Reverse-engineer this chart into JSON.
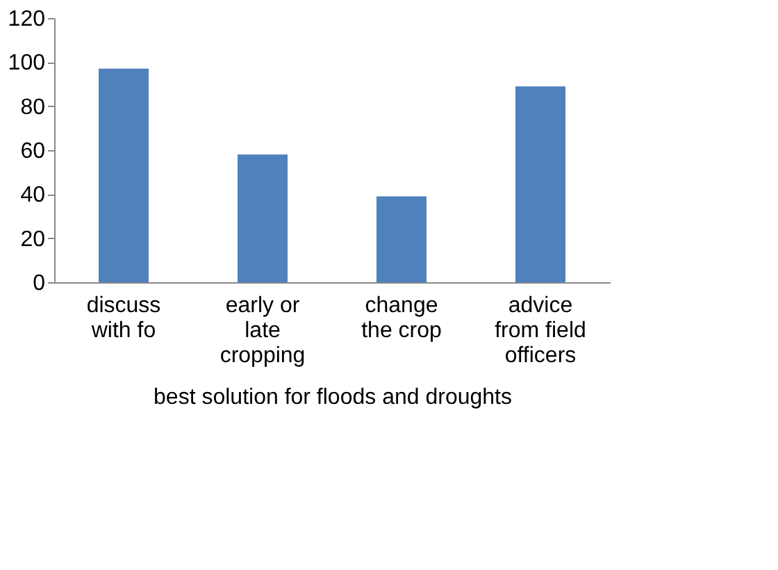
{
  "chart_data": {
    "type": "bar",
    "categories": [
      "discuss\nwith fo",
      "early or\nlate\ncropping",
      "change\nthe crop",
      "advice\nfrom field\nofficers"
    ],
    "values": [
      97,
      58,
      39,
      89
    ],
    "color": "#4f81bd",
    "xlabel": "best solution for floods and droughts",
    "ylim": [
      0,
      120
    ],
    "yticks": [
      0,
      20,
      40,
      60,
      80,
      100,
      120
    ],
    "grid": false
  }
}
